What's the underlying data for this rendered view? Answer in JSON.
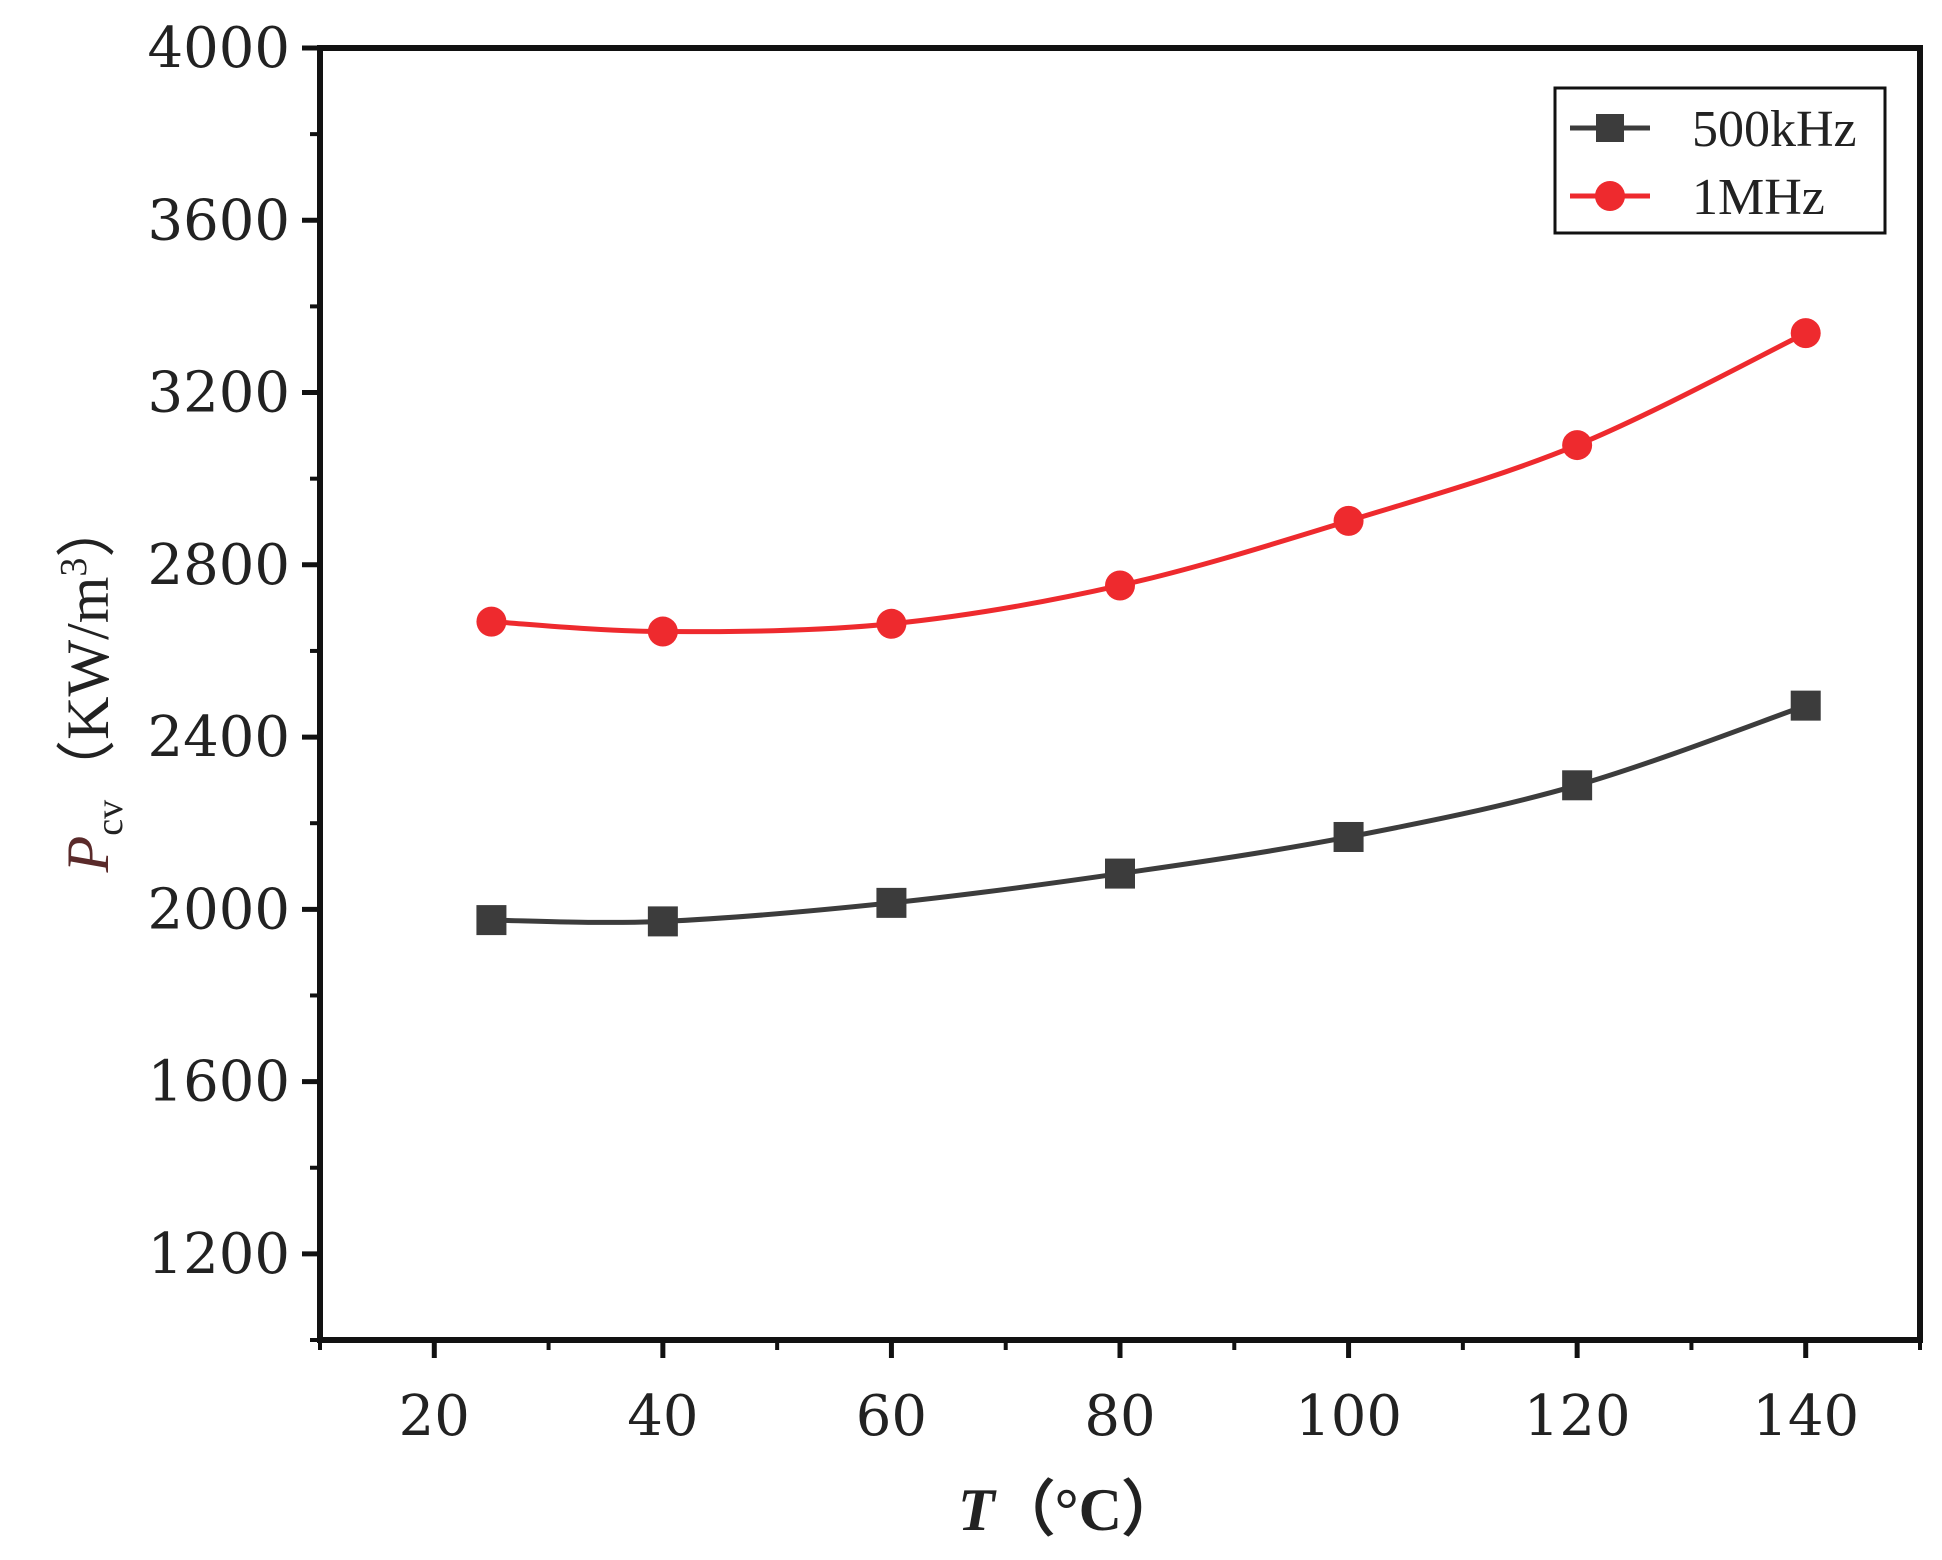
{
  "chart_data": {
    "type": "line",
    "title": "",
    "x": [
      25,
      40,
      60,
      80,
      100,
      120,
      140
    ],
    "xlim": [
      10,
      150
    ],
    "ylim": [
      1000,
      4000
    ],
    "xticks": [
      20,
      40,
      60,
      80,
      100,
      120,
      140
    ],
    "yticks": [
      1200,
      1600,
      2000,
      2400,
      2800,
      3200,
      3600,
      4000
    ],
    "xlabel": {
      "symbol": "T",
      "unit": "（°C）"
    },
    "ylabel": {
      "symbol": "P",
      "subscript": "cv",
      "unit": "（KW/m",
      "superscript": "3",
      "close": "）"
    },
    "grid": false,
    "legend_position": "top-right",
    "series": [
      {
        "name": "500kHz",
        "color": "#3c3c3c",
        "marker": "square",
        "values": [
          1975,
          1972,
          2015,
          2083,
          2168,
          2288,
          2473
        ]
      },
      {
        "name": "1MHz",
        "color": "#ee2a2e",
        "marker": "circle",
        "values": [
          2668,
          2645,
          2663,
          2752,
          2902,
          3078,
          3338
        ]
      }
    ]
  }
}
